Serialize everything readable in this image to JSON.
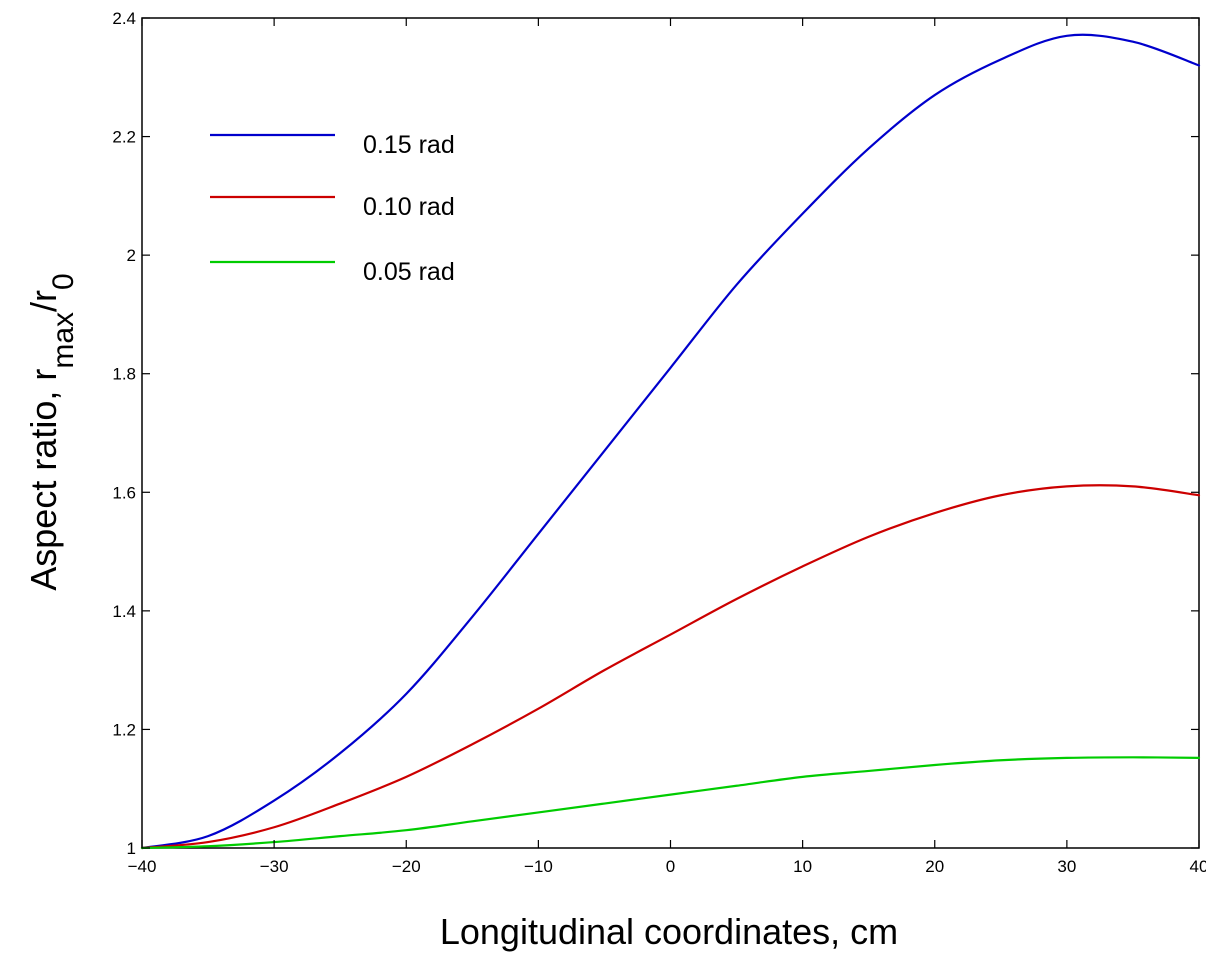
{
  "chart_data": {
    "type": "line",
    "title": "",
    "xlabel": "Longitudinal coordinates,  cm",
    "ylabel": {
      "main": "Aspect ratio,  r",
      "sub1": "max",
      "mid": "/r",
      "sub2": "0"
    },
    "xlim": [
      -40,
      40
    ],
    "ylim": [
      1,
      2.4
    ],
    "xticks": [
      "-40",
      "-30",
      "-20",
      "-10",
      "0",
      "10",
      "20",
      "30",
      "40"
    ],
    "yticks": [
      "1",
      "1.2",
      "1.4",
      "1.6",
      "1.8",
      "2",
      "2.2",
      "2.4"
    ],
    "grid": false,
    "legend_position": "top-left",
    "series": [
      {
        "name": "0.15 rad",
        "color": "#0000cc",
        "x": [
          -40,
          -35,
          -30,
          -25,
          -20,
          -15,
          -10,
          -5,
          0,
          5,
          10,
          15,
          20,
          25,
          30,
          35,
          40
        ],
        "y": [
          1.0,
          1.02,
          1.08,
          1.16,
          1.26,
          1.39,
          1.53,
          1.67,
          1.81,
          1.95,
          2.07,
          2.18,
          2.27,
          2.33,
          2.37,
          2.36,
          2.32
        ]
      },
      {
        "name": "0.10 rad",
        "color": "#cc0000",
        "x": [
          -40,
          -35,
          -30,
          -25,
          -20,
          -15,
          -10,
          -5,
          0,
          5,
          10,
          15,
          20,
          25,
          30,
          35,
          40
        ],
        "y": [
          1.0,
          1.01,
          1.035,
          1.075,
          1.12,
          1.175,
          1.235,
          1.3,
          1.36,
          1.42,
          1.475,
          1.525,
          1.565,
          1.595,
          1.61,
          1.61,
          1.595
        ]
      },
      {
        "name": "0.05 rad",
        "color": "#00cc00",
        "x": [
          -40,
          -35,
          -30,
          -25,
          -20,
          -15,
          -10,
          -5,
          0,
          5,
          10,
          15,
          20,
          25,
          30,
          35,
          40
        ],
        "y": [
          1.0,
          1.003,
          1.01,
          1.02,
          1.03,
          1.045,
          1.06,
          1.075,
          1.09,
          1.105,
          1.12,
          1.13,
          1.14,
          1.148,
          1.152,
          1.153,
          1.152
        ]
      }
    ]
  }
}
